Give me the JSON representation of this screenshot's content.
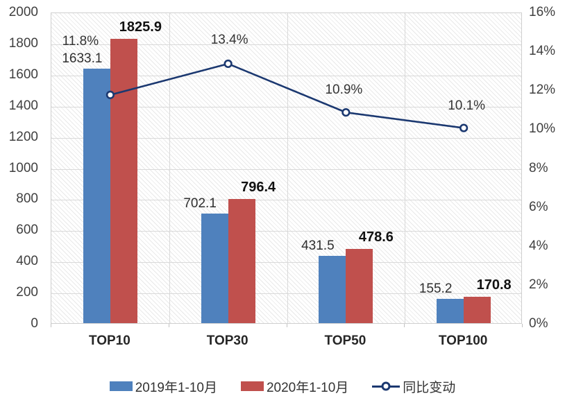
{
  "chart_data": {
    "type": "bar",
    "subtype": "grouped-bars-with-line-overlay",
    "categories": [
      "TOP10",
      "TOP30",
      "TOP50",
      "TOP100"
    ],
    "series": [
      {
        "name": "2019年1-10月",
        "chart_type": "bar",
        "axis": "left",
        "color": "#4F81BD",
        "values": [
          1633.1,
          702.1,
          431.5,
          155.2
        ],
        "labels": [
          "1633.1",
          "702.1",
          "431.5",
          "155.2"
        ]
      },
      {
        "name": "2020年1-10月",
        "chart_type": "bar",
        "axis": "left",
        "color": "#C0504D",
        "values": [
          1825.9,
          796.4,
          478.6,
          170.8
        ],
        "labels": [
          "1825.9",
          "796.4",
          "478.6",
          "170.8"
        ]
      },
      {
        "name": "同比变动",
        "chart_type": "line",
        "axis": "right",
        "color": "#1B3870",
        "marker": "open-circle",
        "values": [
          11.8,
          13.4,
          10.9,
          10.1
        ],
        "labels": [
          "11.8%",
          "13.4%",
          "10.9%",
          "10.1%"
        ]
      }
    ],
    "left_axis": {
      "min": 0,
      "max": 2000,
      "step": 200,
      "tick_labels": [
        "0",
        "200",
        "400",
        "600",
        "800",
        "1000",
        "1200",
        "1400",
        "1600",
        "1800",
        "2000"
      ]
    },
    "right_axis": {
      "min": 0,
      "max": 16,
      "step": 2,
      "tick_labels": [
        "0%",
        "2%",
        "4%",
        "6%",
        "8%",
        "10%",
        "12%",
        "14%",
        "16%"
      ]
    },
    "layout": {
      "grid_horizontal": true,
      "grid_vertical": true,
      "plot_background": "diagonal-hatch",
      "legend_position": "bottom"
    }
  }
}
